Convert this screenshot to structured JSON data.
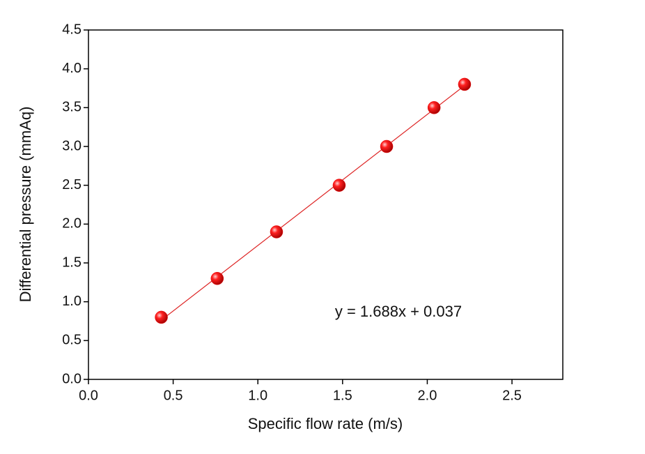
{
  "chart_data": {
    "type": "scatter",
    "x_label": "Specific flow rate (m/s)",
    "y_label": "Differential pressure (mmAq)",
    "annotation": "y = 1.688x + 0.037",
    "color": "#ee0000",
    "x": [
      0.43,
      0.76,
      1.11,
      1.48,
      1.76,
      2.04,
      2.22
    ],
    "values": [
      0.8,
      1.3,
      1.9,
      2.5,
      3.0,
      3.5,
      3.8
    ],
    "fit_line": {
      "x": [
        0.43,
        2.22
      ],
      "values": [
        0.763,
        3.784
      ],
      "color": "#dd2222"
    },
    "xlim": [
      0,
      2.8
    ],
    "ylim": [
      0,
      4.5
    ],
    "xticks": [
      {
        "value": 0,
        "label": "0.0"
      },
      0.5,
      {
        "value": 1,
        "label": "1.0"
      },
      1.5,
      {
        "value": 2,
        "label": "2.0"
      },
      2.5
    ],
    "yticks": [
      {
        "value": 0,
        "label": "0.0"
      },
      0.5,
      {
        "value": 1,
        "label": "1.0"
      },
      1.5,
      {
        "value": 2,
        "label": "2.0"
      },
      2.5,
      {
        "value": 3,
        "label": "3.0"
      },
      3.5,
      {
        "value": 4,
        "label": "4.0"
      },
      4.5
    ]
  }
}
